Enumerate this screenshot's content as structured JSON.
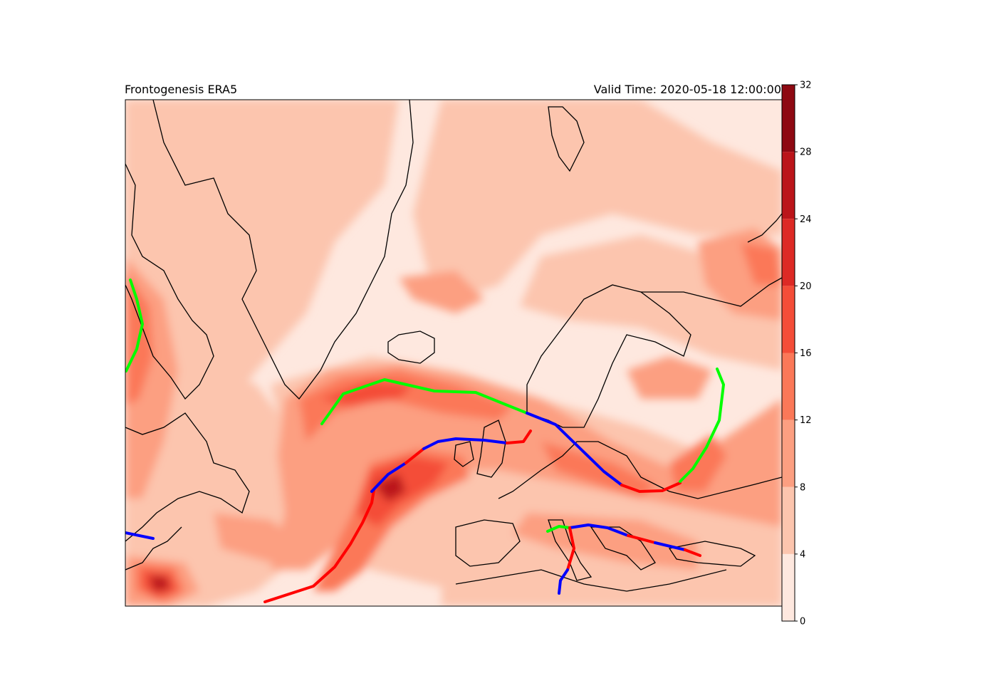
{
  "figure": {
    "title_left": "Frontogenesis ERA5",
    "title_right": "Valid Time: 2020-05-18 12:00:00"
  },
  "colorbar": {
    "ticks": [
      "0",
      "4",
      "8",
      "12",
      "16",
      "20",
      "24",
      "28",
      "32"
    ],
    "levels": [
      0,
      4,
      8,
      12,
      16,
      20,
      24,
      28,
      32
    ],
    "colors": [
      "#fee8df",
      "#fcc5ae",
      "#fc9f81",
      "#fb7858",
      "#f44d38",
      "#dd2a25",
      "#bb151a",
      "#8e0912"
    ]
  },
  "fronts": {
    "cold_color": "#0000ff",
    "warm_color": "#ff0000",
    "stationary_color": "#00ff00"
  },
  "map": {
    "background_color": "#fee8df",
    "coastline_color": "#000000"
  }
}
